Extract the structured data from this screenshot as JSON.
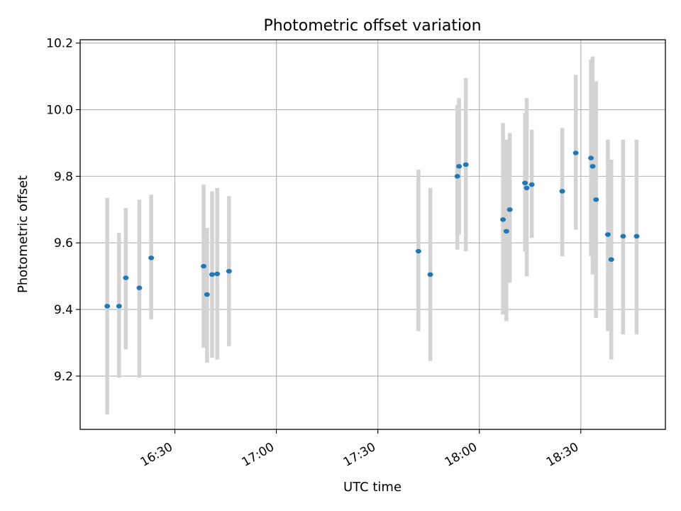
{
  "chart_data": {
    "type": "scatter",
    "title": "Photometric offset variation",
    "xlabel": "UTC time",
    "ylabel": "Photometric offset",
    "x_ticks": [
      "16:30",
      "17:00",
      "17:30",
      "18:00",
      "18:30"
    ],
    "y_ticks": [
      9.2,
      9.4,
      9.6,
      9.8,
      10.0,
      10.2
    ],
    "xlim": [
      "16:02",
      "18:55"
    ],
    "ylim": [
      9.04,
      10.21
    ],
    "grid": true,
    "colors": {
      "point": "#1f77b4",
      "errorbar": "#d3d3d3",
      "grid": "#b0b0b0"
    },
    "points": [
      {
        "x": "16:10",
        "y": 9.41,
        "lo": 9.085,
        "hi": 9.735
      },
      {
        "x": "16:13.5",
        "y": 9.41,
        "lo": 9.195,
        "hi": 9.63
      },
      {
        "x": "16:15.5",
        "y": 9.495,
        "lo": 9.28,
        "hi": 9.705
      },
      {
        "x": "16:19.5",
        "y": 9.465,
        "lo": 9.195,
        "hi": 9.73
      },
      {
        "x": "16:23",
        "y": 9.555,
        "lo": 9.37,
        "hi": 9.745
      },
      {
        "x": "16:38.5",
        "y": 9.53,
        "lo": 9.285,
        "hi": 9.775
      },
      {
        "x": "16:39.5",
        "y": 9.445,
        "lo": 9.24,
        "hi": 9.645
      },
      {
        "x": "16:41",
        "y": 9.505,
        "lo": 9.255,
        "hi": 9.755
      },
      {
        "x": "16:42.5",
        "y": 9.507,
        "lo": 9.25,
        "hi": 9.765
      },
      {
        "x": "16:46",
        "y": 9.515,
        "lo": 9.29,
        "hi": 9.74
      },
      {
        "x": "17:42",
        "y": 9.575,
        "lo": 9.335,
        "hi": 9.82
      },
      {
        "x": "17:45.5",
        "y": 9.505,
        "lo": 9.245,
        "hi": 9.765
      },
      {
        "x": "17:53.5",
        "y": 9.8,
        "lo": 9.58,
        "hi": 10.015
      },
      {
        "x": "17:54",
        "y": 9.83,
        "lo": 9.625,
        "hi": 10.035
      },
      {
        "x": "17:56",
        "y": 9.835,
        "lo": 9.575,
        "hi": 10.095
      },
      {
        "x": "18:07",
        "y": 9.67,
        "lo": 9.385,
        "hi": 9.96
      },
      {
        "x": "18:08",
        "y": 9.635,
        "lo": 9.365,
        "hi": 9.91
      },
      {
        "x": "18:09",
        "y": 9.7,
        "lo": 9.48,
        "hi": 9.93
      },
      {
        "x": "18:13.5",
        "y": 9.78,
        "lo": 9.575,
        "hi": 9.99
      },
      {
        "x": "18:14",
        "y": 9.765,
        "lo": 9.5,
        "hi": 10.035
      },
      {
        "x": "18:15.5",
        "y": 9.775,
        "lo": 9.615,
        "hi": 9.94
      },
      {
        "x": "18:24.5",
        "y": 9.755,
        "lo": 9.56,
        "hi": 9.945
      },
      {
        "x": "18:28.5",
        "y": 9.87,
        "lo": 9.64,
        "hi": 10.105
      },
      {
        "x": "18:33",
        "y": 9.855,
        "lo": 9.56,
        "hi": 10.15
      },
      {
        "x": "18:33.5",
        "y": 9.83,
        "lo": 9.505,
        "hi": 10.16
      },
      {
        "x": "18:34.5",
        "y": 9.73,
        "lo": 9.375,
        "hi": 10.085
      },
      {
        "x": "18:38",
        "y": 9.625,
        "lo": 9.335,
        "hi": 9.91
      },
      {
        "x": "18:39",
        "y": 9.55,
        "lo": 9.25,
        "hi": 9.85
      },
      {
        "x": "18:42.5",
        "y": 9.62,
        "lo": 9.325,
        "hi": 9.91
      },
      {
        "x": "18:46.5",
        "y": 9.62,
        "lo": 9.325,
        "hi": 9.91
      }
    ]
  }
}
